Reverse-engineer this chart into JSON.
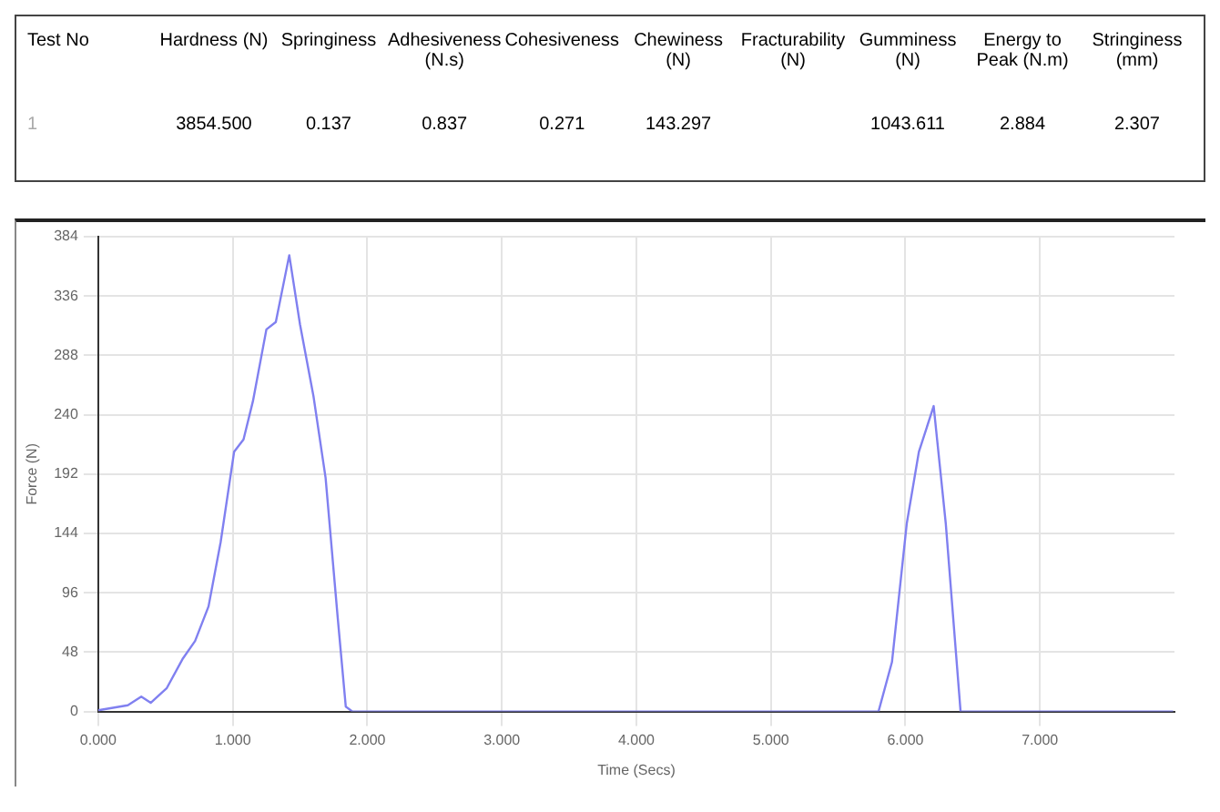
{
  "chart_data": {
    "type": "line",
    "xlabel": "Time (Secs)",
    "ylabel": "Force (N)",
    "annotations": [
      "Test No",
      "Hardness (N)",
      "Springiness",
      "Adhesiveness (N.s)",
      "Cohesiveness",
      "Chewiness (N)",
      "Fracturability (N)",
      "Gumminess (N)",
      "Energy to Peak (N.m)",
      "Stringiness (mm)",
      "1",
      "3854.500",
      "0.137",
      "0.837",
      "0.271",
      "143.297",
      null,
      "1043.611",
      "2.884",
      "2.307"
    ],
    "series": [
      {
        "color": "#8080f0",
        "x": [
          0,
          0.22,
          0.32,
          0.39,
          0.51,
          0.63,
          0.72,
          0.82,
          0.91,
          1.01,
          1.08,
          1.15,
          1.25,
          1.32,
          1.42,
          1.5,
          1.6,
          1.69,
          1.78,
          1.84,
          1.89,
          5.8,
          5.9,
          6.01,
          6.1,
          6.21,
          6.3,
          6.41,
          7.99
        ],
        "values": [
          1,
          5,
          12,
          7,
          19,
          43,
          57,
          85,
          137,
          210,
          220,
          251,
          309,
          315,
          369,
          313,
          255,
          189,
          76,
          4,
          0,
          0,
          40,
          152,
          210,
          247,
          152,
          0,
          0
        ]
      }
    ],
    "xlim": [
      0,
      8
    ],
    "xticks": [
      {
        "value": 0,
        "label": "0.000"
      },
      {
        "value": 1,
        "label": "1.000"
      },
      {
        "value": 2,
        "label": "2.000"
      },
      {
        "value": 3,
        "label": "3.000"
      },
      {
        "value": 4,
        "label": "4.000"
      },
      {
        "value": 5,
        "label": "5.000"
      },
      {
        "value": 6,
        "label": "6.000"
      },
      {
        "value": 7,
        "label": "7.000"
      }
    ],
    "ylim": [
      0,
      384
    ],
    "yticks": [
      0,
      48,
      96,
      144,
      192,
      240,
      288,
      336,
      384
    ],
    "grid": true,
    "marker": "none",
    "line_style": "solid"
  }
}
